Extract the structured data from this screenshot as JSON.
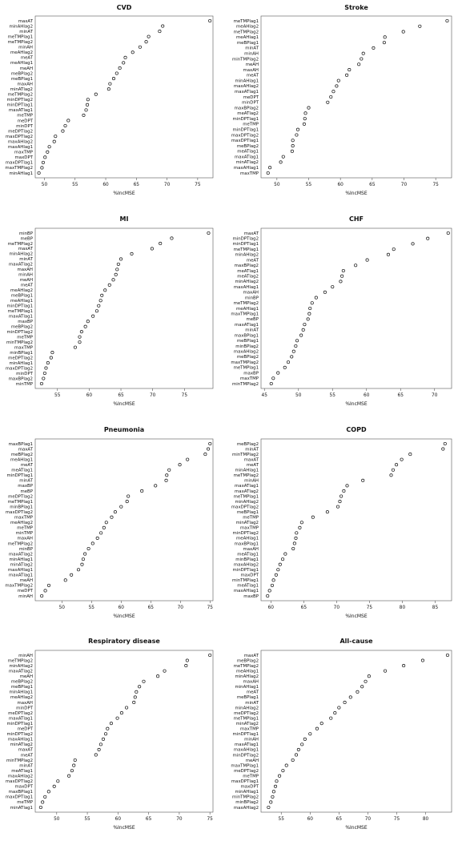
{
  "figure": {
    "background": "#ffffff",
    "marker": "open-circle",
    "marker_color": "#111111"
  },
  "chart_data": [
    {
      "type": "scatter",
      "title": "CVD",
      "xlabel": "%IncMSE",
      "xlim": [
        48.5,
        77.5
      ],
      "xticks": [
        50,
        55,
        60,
        65,
        70,
        75
      ],
      "labels": [
        "maxAT",
        "minAHlag2",
        "minAT",
        "meTMPlag1",
        "meTMPlag2",
        "minAH",
        "meAHlag2",
        "meAT",
        "meAHlag1",
        "meAH",
        "meBPlag2",
        "meBPlag1",
        "maxAH",
        "minATlag2",
        "meTMPlag2",
        "minDPTlag2",
        "minDPTlag1",
        "maxATlag1",
        "meTMP",
        "meDPT",
        "minDPT",
        "meDPTlag2",
        "maxDPTlag2",
        "maxAHlag2",
        "maxAHlag1",
        "maxTMP",
        "maxDPT",
        "maxDPTlag1",
        "maxTMPlag2",
        "minAHlag1"
      ],
      "values": [
        77.0,
        69.3,
        68.8,
        67.0,
        66.6,
        65.6,
        64.4,
        63.2,
        62.9,
        62.3,
        61.8,
        61.3,
        60.7,
        60.5,
        58.4,
        57.1,
        57.0,
        56.8,
        56.4,
        53.9,
        53.4,
        53.0,
        51.8,
        51.6,
        50.8,
        50.5,
        50.1,
        49.8,
        49.6,
        49.1
      ]
    },
    {
      "type": "scatter",
      "title": "Stroke",
      "xlabel": "%IncMSE",
      "xlim": [
        47.5,
        77.5
      ],
      "xticks": [
        50,
        55,
        60,
        65,
        70,
        75
      ],
      "labels": [
        "meTMPlag1",
        "meAHlag2",
        "meTMPlag2",
        "meAHlag1",
        "meBPlag1",
        "minAT",
        "minAH",
        "minTMPlag2",
        "meAH",
        "maxAH",
        "meAT",
        "minAHlag1",
        "maxAHlag2",
        "maxATlag1",
        "meDPT",
        "minDPT",
        "maxBPlag2",
        "meATlag2",
        "minDPTlag1",
        "meTMP",
        "minDPTlag1",
        "maxDPTlag2",
        "maxDPTlag1",
        "meBPlag2",
        "meATlag1",
        "maxATlag1",
        "minATlag2",
        "maxAHlag1",
        "maxTMP"
      ],
      "values": [
        76.8,
        72.5,
        69.9,
        67.0,
        66.9,
        65.2,
        63.6,
        63.3,
        62.9,
        61.4,
        61.0,
        59.7,
        59.4,
        58.9,
        58.5,
        58.0,
        55.0,
        54.5,
        54.4,
        54.3,
        53.3,
        53.1,
        52.5,
        52.5,
        52.4,
        51.0,
        50.6,
        48.9,
        48.6
      ]
    },
    {
      "type": "scatter",
      "title": "MI",
      "xlabel": "%IncMSE",
      "xlim": [
        51.5,
        79.5
      ],
      "xticks": [
        55,
        60,
        65,
        70,
        75
      ],
      "labels": [
        "minBP",
        "meBP",
        "meTMPlag2",
        "maxAT",
        "minAHlag2",
        "minAT",
        "maxATlag2",
        "maxAH",
        "minAH",
        "meAH",
        "meAT",
        "meAHlag2",
        "meBPlag1",
        "meAHlag1",
        "minDPTlag1",
        "meTMPlag1",
        "maxATlag1",
        "maxBP",
        "meBPlag2",
        "minDPTlag2",
        "meTMP",
        "minTMPlag2",
        "maxTMP",
        "minBPlag1",
        "meDPTlag2",
        "minAHlag1",
        "maxDPTlag2",
        "minDPT",
        "maxBPlag2",
        "minTMP"
      ],
      "values": [
        78.8,
        73.0,
        71.2,
        69.9,
        66.7,
        65.0,
        64.6,
        64.4,
        64.2,
        63.8,
        63.2,
        62.5,
        62.0,
        61.8,
        61.5,
        61.2,
        60.6,
        59.8,
        59.4,
        58.8,
        58.5,
        58.5,
        57.8,
        54.2,
        54.0,
        53.5,
        53.2,
        53.0,
        52.8,
        52.5
      ]
    },
    {
      "type": "scatter",
      "title": "CHF",
      "xlabel": "%IncMSE",
      "xlim": [
        44.5,
        72.5
      ],
      "xticks": [
        45,
        50,
        55,
        60,
        65,
        70
      ],
      "labels": [
        "maxAT",
        "minDPTlag2",
        "minDPTlag1",
        "meTMPlag1",
        "minAHlag2",
        "meAT",
        "maxBPlag2",
        "meATlag1",
        "meATlag2",
        "minAHlag2",
        "maxAHlag1",
        "maxAH",
        "minBP",
        "meTMPlag2",
        "meAHlag1",
        "maxTMPlag1",
        "meBP",
        "maxATlag1",
        "minAT",
        "maxBPlag1",
        "meBPlag1",
        "minBPlag2",
        "maxAHlag2",
        "meBPlag2",
        "maxTMPlag2",
        "meTMPlag1",
        "maxBP",
        "maxTMP",
        "minTMPlag2"
      ],
      "values": [
        72.0,
        69.0,
        66.8,
        64.0,
        63.2,
        60.1,
        58.4,
        56.6,
        56.4,
        56.2,
        55.0,
        53.9,
        52.6,
        52.0,
        51.7,
        51.6,
        51.4,
        50.9,
        50.7,
        50.4,
        49.8,
        49.6,
        49.3,
        49.0,
        48.5,
        48.0,
        47.0,
        46.3,
        46.0
      ]
    },
    {
      "type": "scatter",
      "title": "Pneumonia",
      "xlabel": "%IncMSE",
      "xlim": [
        45.5,
        75.5
      ],
      "xticks": [
        50,
        55,
        60,
        65,
        70,
        75
      ],
      "labels": [
        "maxBPlag1",
        "maxAT",
        "meBPlag2",
        "meAHlag1",
        "meAT",
        "meATlag1",
        "minDPTlag1",
        "minAT",
        "maxBP",
        "meBP",
        "meDPTlag2",
        "meTMPlag1",
        "minBPlag1",
        "maxDPTlag2",
        "maxTMP",
        "meAHlag2",
        "meTMP",
        "minTMP",
        "maxAH",
        "meTMPlag2",
        "minBP",
        "maxATlag2",
        "minAHlag1",
        "minATlag2",
        "maxAHlag1",
        "maxATlag1",
        "meAH",
        "maxTMPlag2",
        "meDPT",
        "minAH"
      ],
      "values": [
        75.0,
        74.7,
        74.2,
        71.2,
        69.9,
        68.1,
        67.7,
        67.6,
        65.8,
        63.5,
        61.2,
        61.0,
        60.0,
        59.0,
        58.4,
        57.5,
        57.1,
        56.6,
        56.0,
        55.2,
        54.5,
        53.9,
        53.6,
        53.4,
        52.8,
        51.6,
        50.6,
        47.8,
        47.2,
        46.6
      ]
    },
    {
      "type": "scatter",
      "title": "COPD",
      "xlabel": "%IncMSE",
      "xlim": [
        58.5,
        87.5
      ],
      "xticks": [
        60,
        65,
        70,
        75,
        80,
        85
      ],
      "labels": [
        "meBPlag2",
        "minAT",
        "minTMPlag2",
        "maxAT",
        "meAT",
        "minAHlag1",
        "meTMPlag2",
        "minAH",
        "maxATlag1",
        "maxATlag2",
        "meTMPlag1",
        "minAHlag2",
        "maxDPTlag2",
        "meBPlag1",
        "meTMP",
        "minATlag2",
        "maxTMP",
        "minDPTlag2",
        "meAHlag1",
        "maxBPlag1",
        "maxAH",
        "meATlag1",
        "minBPlag1",
        "maxAHlag2",
        "minDPTlag1",
        "maxDPT",
        "minTMPlag1",
        "meATlag1",
        "maxAHlag1",
        "maxBP"
      ],
      "values": [
        86.5,
        86.2,
        81.2,
        79.9,
        79.1,
        78.6,
        78.3,
        74.0,
        71.6,
        71.1,
        70.7,
        70.5,
        70.2,
        68.6,
        66.4,
        64.7,
        64.4,
        63.9,
        63.8,
        63.6,
        63.4,
        62.2,
        61.8,
        61.4,
        61.1,
        60.8,
        60.4,
        60.2,
        59.8,
        59.5
      ]
    },
    {
      "type": "scatter",
      "title": "Respiratory disease",
      "xlabel": "%IncMSE",
      "xlim": [
        46.5,
        75.5
      ],
      "xticks": [
        50,
        55,
        60,
        65,
        70,
        75
      ],
      "labels": [
        "minAH",
        "meTMPlag2",
        "minAHlag2",
        "maxATlag2",
        "meAH",
        "meBPlag2",
        "meBPlag1",
        "minAHlag1",
        "meAHlag2",
        "maxAH",
        "minDPT",
        "meDPTlag2",
        "maxATlag1",
        "minDPTlag1",
        "meDPT",
        "minDPTlag2",
        "maxAHlag1",
        "minATlag2",
        "maxAT",
        "meAT",
        "minTMPlag2",
        "minAT",
        "meATlag1",
        "maxAHlag2",
        "maxDPTlag2",
        "maxDPT",
        "maxBPlag1",
        "maxDPTlag1",
        "meTMP",
        "minATlag1"
      ],
      "values": [
        75.0,
        71.3,
        71.1,
        67.6,
        66.5,
        64.2,
        63.5,
        63.0,
        62.8,
        62.6,
        61.4,
        60.6,
        59.9,
        58.9,
        58.3,
        58.0,
        57.6,
        57.2,
        56.9,
        56.4,
        53.0,
        52.8,
        52.5,
        52.0,
        50.2,
        49.6,
        48.7,
        48.1,
        47.7,
        47.4
      ]
    },
    {
      "type": "scatter",
      "title": "All-cause",
      "xlabel": "%IncMSE",
      "xlim": [
        51.5,
        84.5
      ],
      "xticks": [
        55,
        60,
        65,
        70,
        75,
        80
      ],
      "labels": [
        "maxAT",
        "meBPlag2",
        "meTMPlag2",
        "meAHlag1",
        "minAHlag2",
        "maxAH",
        "minAHlag1",
        "meAT",
        "meBPlag1",
        "minAT",
        "minAHlag2",
        "meDPTlag2",
        "meTMPlag1",
        "minATlag2",
        "maxTMP",
        "minDPTlag1",
        "minAH",
        "maxATlag1",
        "maxAHlag1",
        "minDPTlag2",
        "meAH",
        "maxTMPlag1",
        "meDPTlag2",
        "meTMP",
        "maxDPTlag1",
        "maxDPT",
        "minAHlag1",
        "minTMPlag2",
        "minBPlag2",
        "maxAHlag2"
      ],
      "values": [
        83.8,
        79.5,
        76.2,
        73.0,
        70.2,
        69.6,
        69.0,
        68.2,
        67.0,
        66.0,
        65.0,
        64.3,
        63.6,
        62.0,
        61.2,
        60.0,
        59.1,
        58.6,
        58.0,
        57.6,
        57.0,
        55.9,
        55.3,
        54.7,
        54.2,
        54.0,
        53.7,
        53.5,
        53.2,
        52.8
      ]
    }
  ]
}
